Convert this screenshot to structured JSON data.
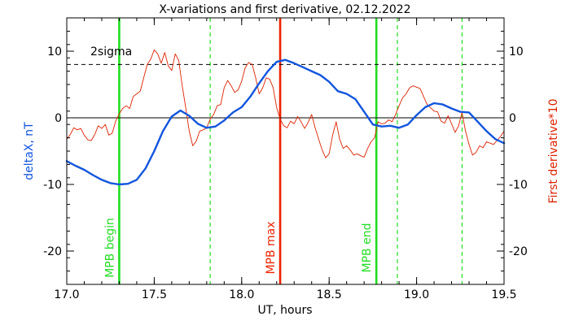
{
  "chart_data": {
    "type": "line",
    "title": "X-variations and first derivative, 02.12.2022",
    "xlabel": "UT, hours",
    "ylabel_left": "deltaX, nT",
    "ylabel_right": "First derivative*10",
    "xlim": [
      17.0,
      19.5
    ],
    "ylim": [
      -25,
      15
    ],
    "x_ticks": [
      17.0,
      17.5,
      18.0,
      18.5,
      19.0,
      19.5
    ],
    "y_ticks": [
      -20,
      -10,
      0,
      10
    ],
    "grid": false,
    "zero_line": 0,
    "threshold": {
      "label": "2sigma",
      "value": 8
    },
    "markers_solid": [
      {
        "x": 17.3,
        "label": "MPB begin",
        "color": "#22dd22"
      },
      {
        "x": 18.22,
        "label": "MPB max",
        "color": "#ee2200"
      },
      {
        "x": 18.77,
        "label": "MPB end",
        "color": "#22dd22"
      }
    ],
    "markers_dashed": [
      {
        "x": 17.82,
        "color": "#22dd22"
      },
      {
        "x": 18.89,
        "color": "#22dd22"
      },
      {
        "x": 19.26,
        "color": "#22dd22"
      }
    ],
    "series": [
      {
        "key": "deltaX",
        "color": "#1155dd",
        "width": 2.4,
        "x": [
          17.0,
          17.05,
          17.1,
          17.15,
          17.2,
          17.25,
          17.3,
          17.35,
          17.4,
          17.45,
          17.5,
          17.55,
          17.6,
          17.65,
          17.7,
          17.75,
          17.8,
          17.85,
          17.9,
          17.95,
          18.0,
          18.05,
          18.1,
          18.15,
          18.2,
          18.25,
          18.3,
          18.35,
          18.4,
          18.45,
          18.5,
          18.55,
          18.6,
          18.65,
          18.7,
          18.75,
          18.8,
          18.85,
          18.9,
          18.95,
          19.0,
          19.05,
          19.1,
          19.15,
          19.2,
          19.25,
          19.3,
          19.35,
          19.4,
          19.45,
          19.5
        ],
        "y": [
          -6.5,
          -7.2,
          -7.8,
          -8.6,
          -9.3,
          -9.8,
          -10.0,
          -9.9,
          -9.3,
          -7.6,
          -5.0,
          -2.0,
          0.2,
          1.1,
          0.3,
          -0.9,
          -1.5,
          -1.3,
          -0.4,
          0.8,
          1.6,
          3.2,
          5.2,
          7.0,
          8.4,
          8.7,
          8.2,
          7.6,
          7.0,
          6.4,
          5.4,
          4.0,
          3.6,
          2.8,
          0.9,
          -1.0,
          -1.3,
          -1.2,
          -1.5,
          -1.0,
          0.4,
          1.6,
          2.2,
          2.0,
          1.4,
          0.9,
          0.8,
          -0.6,
          -2.0,
          -3.2,
          -3.8
        ]
      },
      {
        "key": "derivative",
        "color": "#dd2200",
        "width": 0.9,
        "x": [
          17.0,
          17.02,
          17.04,
          17.06,
          17.08,
          17.1,
          17.12,
          17.14,
          17.16,
          17.18,
          17.2,
          17.22,
          17.24,
          17.26,
          17.28,
          17.3,
          17.32,
          17.34,
          17.36,
          17.38,
          17.4,
          17.42,
          17.44,
          17.46,
          17.48,
          17.5,
          17.52,
          17.54,
          17.56,
          17.58,
          17.6,
          17.62,
          17.64,
          17.66,
          17.68,
          17.7,
          17.72,
          17.74,
          17.76,
          17.78,
          17.8,
          17.82,
          17.84,
          17.86,
          17.88,
          17.9,
          17.92,
          17.94,
          17.96,
          17.98,
          18.0,
          18.02,
          18.04,
          18.06,
          18.08,
          18.1,
          18.12,
          18.14,
          18.16,
          18.18,
          18.2,
          18.22,
          18.24,
          18.26,
          18.28,
          18.3,
          18.32,
          18.34,
          18.36,
          18.38,
          18.4,
          18.42,
          18.44,
          18.46,
          18.48,
          18.5,
          18.52,
          18.54,
          18.56,
          18.58,
          18.6,
          18.62,
          18.64,
          18.66,
          18.68,
          18.7,
          18.72,
          18.74,
          18.76,
          18.78,
          18.8,
          18.82,
          18.84,
          18.86,
          18.88,
          18.9,
          18.92,
          18.94,
          18.96,
          18.98,
          19.0,
          19.02,
          19.04,
          19.06,
          19.08,
          19.1,
          19.12,
          19.14,
          19.16,
          19.18,
          19.2,
          19.22,
          19.24,
          19.26,
          19.28,
          19.3,
          19.32,
          19.34,
          19.36,
          19.38,
          19.4,
          19.42,
          19.44,
          19.46,
          19.48,
          19.5
        ],
        "y": [
          -3.2,
          -2.5,
          -1.5,
          -1.8,
          -1.6,
          -2.6,
          -3.3,
          -3.4,
          -2.5,
          -1.2,
          -1.6,
          -1.0,
          -2.6,
          -2.3,
          -0.5,
          0.6,
          1.4,
          1.8,
          1.4,
          3.2,
          3.6,
          4.0,
          6.0,
          8.0,
          8.8,
          10.2,
          9.6,
          8.2,
          9.8,
          7.8,
          7.1,
          9.6,
          8.6,
          4.8,
          1.5,
          -2.0,
          -4.2,
          -3.5,
          -2.0,
          -1.8,
          -1.5,
          -0.2,
          0.5,
          1.8,
          2.0,
          4.5,
          5.6,
          4.8,
          3.8,
          4.2,
          5.5,
          7.5,
          8.3,
          8.0,
          6.0,
          3.6,
          4.5,
          6.0,
          5.8,
          4.5,
          1.5,
          -0.2,
          -1.2,
          -1.5,
          -0.5,
          -0.9,
          0.2,
          -0.6,
          -1.6,
          -0.7,
          0.5,
          -1.5,
          -3.2,
          -4.8,
          -6.0,
          -5.4,
          -2.6,
          -0.6,
          -3.2,
          -4.6,
          -4.2,
          -4.8,
          -5.6,
          -5.4,
          -5.7,
          -5.9,
          -4.6,
          -3.6,
          -3.0,
          -0.6,
          -0.9,
          -0.8,
          -0.3,
          -0.6,
          0.5,
          1.8,
          3.0,
          3.6,
          4.5,
          4.8,
          4.6,
          4.4,
          3.2,
          2.0,
          1.5,
          1.0,
          0.9,
          -0.5,
          -0.8,
          0.3,
          -0.9,
          -2.2,
          -1.2,
          0.8,
          -2.0,
          -4.0,
          -5.6,
          -5.2,
          -4.2,
          -4.5,
          -3.6,
          -3.8,
          -4.0,
          -3.4,
          -2.8,
          -2.0
        ]
      }
    ]
  }
}
